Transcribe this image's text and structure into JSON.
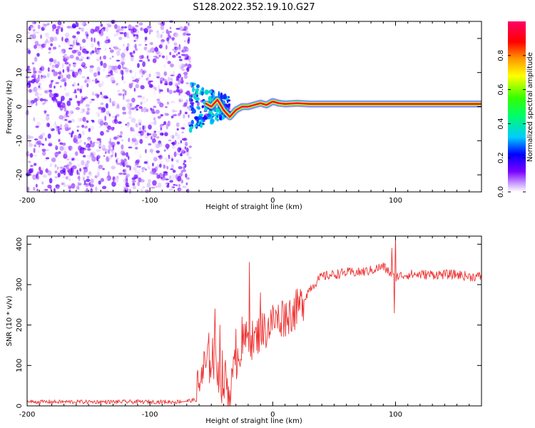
{
  "title": "S128.2022.352.19.10.G27",
  "chart_data": [
    {
      "type": "heatmap",
      "xlabel": "Height of straight line (km)",
      "ylabel": "Frequency (Hz)",
      "xlim": [
        -200,
        170
      ],
      "ylim": [
        -25,
        25
      ],
      "xticks": [
        -200,
        -100,
        0,
        100
      ],
      "yticks": [
        -20,
        -10,
        0,
        10,
        20
      ],
      "colorbar": {
        "label": "Normalized spectral amplitude",
        "range": [
          0,
          1
        ],
        "ticks": [
          0.0,
          0.2,
          0.4,
          0.6,
          0.8
        ],
        "tick_labels": [
          "0.0",
          "0.2",
          "0.4",
          "0.6",
          "0.8"
        ],
        "colormap": "rainbow (white → purple → blue → cyan → green → yellow → orange → red → magenta)"
      },
      "regions": [
        {
          "x_range": [
            -200,
            -67
          ],
          "freq_range": [
            -25,
            25
          ],
          "pattern": "diffuse noise",
          "amplitude_range": [
            0.0,
            0.15
          ]
        },
        {
          "x_range": [
            -67,
            -35
          ],
          "freq_range": [
            -7,
            7
          ],
          "pattern": "scattered signal",
          "amplitude_range": [
            0.1,
            0.4
          ]
        },
        {
          "x_range": [
            -35,
            170
          ],
          "freq_range": [
            -1,
            2
          ],
          "pattern": "narrow carrier line",
          "amplitude_range": [
            0.6,
            1.0
          ]
        }
      ],
      "carrier_line": {
        "x": [
          -55,
          -50,
          -45,
          -40,
          -35,
          -30,
          -25,
          -20,
          -15,
          -10,
          -5,
          0,
          5,
          10,
          20,
          30,
          40,
          60,
          80,
          100,
          120,
          140,
          170
        ],
        "freq_hz": [
          1,
          0,
          2,
          -1,
          -3,
          -1,
          0,
          0,
          0.5,
          1,
          0.5,
          1.5,
          1,
          0.8,
          1,
          0.8,
          0.8,
          0.8,
          0.8,
          0.8,
          0.8,
          0.8,
          0.8
        ]
      }
    },
    {
      "type": "line",
      "xlabel": "Height of straight line (km)",
      "ylabel": "SNR (10 * v/v)",
      "xlim": [
        -200,
        170
      ],
      "ylim": [
        0,
        420
      ],
      "xticks": [
        -200,
        -100,
        0,
        100
      ],
      "yticks": [
        0,
        100,
        200,
        300,
        400
      ],
      "color": "#ee3333",
      "series": [
        {
          "x": [
            -200,
            -180,
            -160,
            -140,
            -120,
            -100,
            -80,
            -70,
            -62,
            -58,
            -55,
            -50,
            -45,
            -40,
            -35,
            -30,
            -25,
            -20,
            -15,
            -10,
            -5,
            0,
            5,
            10,
            15,
            20,
            25,
            30,
            35,
            40,
            50,
            60,
            70,
            80,
            90,
            95,
            100,
            110,
            120,
            130,
            140,
            150,
            160,
            170
          ],
          "values": [
            10,
            10,
            10,
            10,
            10,
            10,
            10,
            12,
            15,
            70,
            90,
            130,
            110,
            60,
            30,
            110,
            150,
            170,
            160,
            185,
            190,
            210,
            215,
            220,
            230,
            240,
            260,
            290,
            305,
            320,
            325,
            330,
            330,
            335,
            345,
            330,
            320,
            325,
            325,
            325,
            325,
            325,
            320,
            320
          ],
          "spikes": [
            {
              "x": -58,
              "y": 95
            },
            {
              "x": -53,
              "y": 150
            },
            {
              "x": -47,
              "y": 240
            },
            {
              "x": -43,
              "y": 200
            },
            {
              "x": -38,
              "y": 80
            },
            {
              "x": -30,
              "y": 190
            },
            {
              "x": -25,
              "y": 220
            },
            {
              "x": -19,
              "y": 355
            },
            {
              "x": -10,
              "y": 280
            },
            {
              "x": 8,
              "y": 260
            },
            {
              "x": 97,
              "y": 390
            },
            {
              "x": 100,
              "y": 420
            },
            {
              "x": 99,
              "y": 230
            }
          ],
          "noise_band": [
            {
              "x_range": [
                -200,
                -62
              ],
              "amplitude": 5
            },
            {
              "x_range": [
                -62,
                -35
              ],
              "amplitude": 70
            },
            {
              "x_range": [
                -35,
                25
              ],
              "amplitude": 50
            },
            {
              "x_range": [
                25,
                170
              ],
              "amplitude": 12
            }
          ]
        }
      ]
    }
  ]
}
